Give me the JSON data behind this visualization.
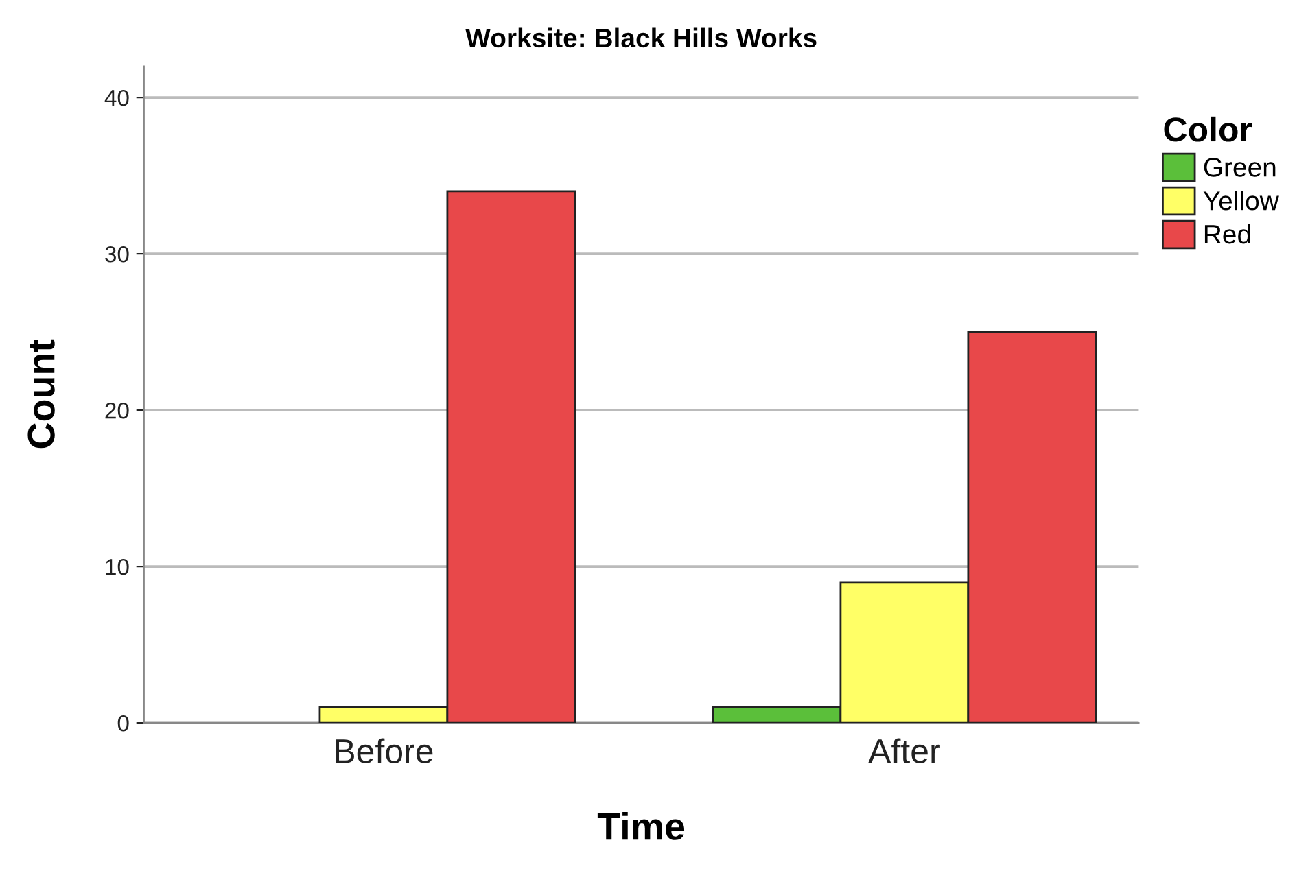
{
  "chart_data": {
    "type": "bar",
    "title": "Worksite: Black Hills Works",
    "xlabel": "Time",
    "ylabel": "Count",
    "legend_title": "Color",
    "categories": [
      "Before",
      "After"
    ],
    "series": [
      {
        "name": "Green",
        "color": "#5bbf3a",
        "values": [
          null,
          1
        ]
      },
      {
        "name": "Yellow",
        "color": "#ffff66",
        "values": [
          1,
          9
        ]
      },
      {
        "name": "Red",
        "color": "#e8484a",
        "values": [
          34,
          25
        ]
      }
    ],
    "ylim": [
      0,
      42
    ],
    "yticks": [
      0,
      10,
      20,
      30,
      40
    ],
    "grid": "y",
    "legend": "top right"
  }
}
